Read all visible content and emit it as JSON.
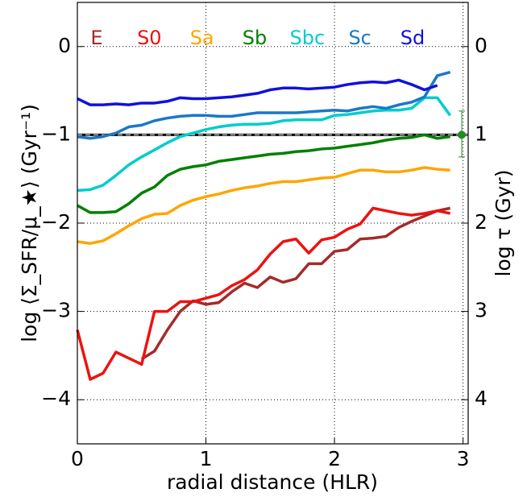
{
  "chart_data": {
    "type": "line",
    "x_label": "radial distance (HLR)",
    "y_label": "log ⟨Σ_SFR/μ_★⟩ (Gyr⁻¹)",
    "y2_label": "log τ (Gyr)",
    "x": [
      0,
      0.1,
      0.2,
      0.3,
      0.4,
      0.5,
      0.6,
      0.7,
      0.8,
      0.9,
      1.0,
      1.1,
      1.2,
      1.3,
      1.4,
      1.5,
      1.6,
      1.7,
      1.8,
      1.9,
      2.0,
      2.1,
      2.2,
      2.3,
      2.4,
      2.5,
      2.6,
      2.7,
      2.8,
      2.9
    ],
    "series": [
      {
        "name": "E",
        "color": "#a52a2a",
        "values": [
          null,
          null,
          null,
          null,
          null,
          -3.54,
          -3.45,
          -3.21,
          -3.0,
          -2.88,
          -2.92,
          -2.9,
          -2.78,
          -2.68,
          -2.73,
          -2.61,
          -2.67,
          -2.63,
          -2.46,
          -2.46,
          -2.32,
          -2.3,
          -2.18,
          -2.17,
          -2.15,
          -2.05,
          -1.98,
          -1.92,
          -1.86,
          -1.83
        ]
      },
      {
        "name": "S0",
        "color": "#ee1111",
        "values": [
          -3.21,
          -3.77,
          -3.7,
          -3.46,
          -3.53,
          -3.6,
          -3.0,
          -3.0,
          -2.89,
          -2.89,
          -2.85,
          -2.81,
          -2.71,
          -2.64,
          -2.53,
          -2.35,
          -2.21,
          -2.18,
          -2.34,
          -2.19,
          -2.16,
          -2.07,
          -2.01,
          -1.83,
          -1.86,
          -1.89,
          -1.91,
          -1.89,
          -1.86,
          -1.89
        ]
      },
      {
        "name": "Sa",
        "color": "#ffa500",
        "values": [
          -2.21,
          -2.23,
          -2.2,
          -2.12,
          -2.03,
          -1.95,
          -1.9,
          -1.89,
          -1.8,
          -1.74,
          -1.7,
          -1.67,
          -1.63,
          -1.6,
          -1.58,
          -1.55,
          -1.53,
          -1.53,
          -1.51,
          -1.49,
          -1.48,
          -1.44,
          -1.4,
          -1.4,
          -1.42,
          -1.42,
          -1.4,
          -1.37,
          -1.39,
          -1.4
        ]
      },
      {
        "name": "Sb",
        "color": "#008000",
        "values": [
          -1.8,
          -1.88,
          -1.88,
          -1.87,
          -1.78,
          -1.66,
          -1.59,
          -1.46,
          -1.39,
          -1.36,
          -1.34,
          -1.3,
          -1.28,
          -1.26,
          -1.24,
          -1.22,
          -1.21,
          -1.19,
          -1.18,
          -1.16,
          -1.15,
          -1.13,
          -1.11,
          -1.09,
          -1.06,
          -1.04,
          -1.03,
          -1.0,
          -1.04,
          -1.02
        ]
      },
      {
        "name": "Sbc",
        "color": "#00cccc",
        "values": [
          -1.63,
          -1.62,
          -1.57,
          -1.46,
          -1.34,
          -1.25,
          -1.17,
          -1.09,
          -1.02,
          -0.98,
          -0.94,
          -0.91,
          -0.89,
          -0.88,
          -0.88,
          -0.87,
          -0.84,
          -0.83,
          -0.83,
          -0.83,
          -0.78,
          -0.77,
          -0.75,
          -0.73,
          -0.72,
          -0.72,
          -0.7,
          -0.58,
          -0.58,
          -0.78
        ]
      },
      {
        "name": "Sc",
        "color": "#1a78c8",
        "values": [
          -1.02,
          -1.04,
          -1.02,
          -0.98,
          -0.91,
          -0.89,
          -0.84,
          -0.81,
          -0.79,
          -0.78,
          -0.78,
          -0.79,
          -0.79,
          -0.77,
          -0.75,
          -0.75,
          -0.75,
          -0.75,
          -0.74,
          -0.73,
          -0.72,
          -0.73,
          -0.7,
          -0.68,
          -0.7,
          -0.66,
          -0.63,
          -0.57,
          -0.33,
          -0.29
        ]
      },
      {
        "name": "Sd",
        "color": "#1010e0",
        "values": [
          -0.59,
          -0.66,
          -0.66,
          -0.65,
          -0.66,
          -0.64,
          -0.64,
          -0.62,
          -0.58,
          -0.59,
          -0.59,
          -0.58,
          -0.57,
          -0.55,
          -0.53,
          -0.49,
          -0.47,
          -0.47,
          -0.48,
          -0.47,
          -0.46,
          -0.43,
          -0.41,
          -0.4,
          -0.41,
          -0.38,
          -0.43,
          -0.49,
          -0.44,
          null
        ]
      }
    ],
    "xlim": [
      0,
      3.04
    ],
    "xticks": [
      0,
      1,
      2,
      3
    ],
    "ylim": [
      -4.5,
      0.5
    ],
    "yticks": [
      {
        "value": -4,
        "label": "−4"
      },
      {
        "value": -3,
        "label": "−3"
      },
      {
        "value": -2,
        "label": "−2"
      },
      {
        "value": -1,
        "label": "−1"
      },
      0
    ],
    "y2lim": [
      -0.5,
      4.5
    ],
    "y2_inverted": true,
    "y2ticks": [
      0,
      1,
      2,
      3,
      4
    ],
    "grid": true,
    "reference_line": {
      "y": -1
    },
    "marker": {
      "x": 2.99,
      "y": -1,
      "yerr": [
        0.25,
        0.27
      ],
      "color": "#228b22"
    }
  }
}
